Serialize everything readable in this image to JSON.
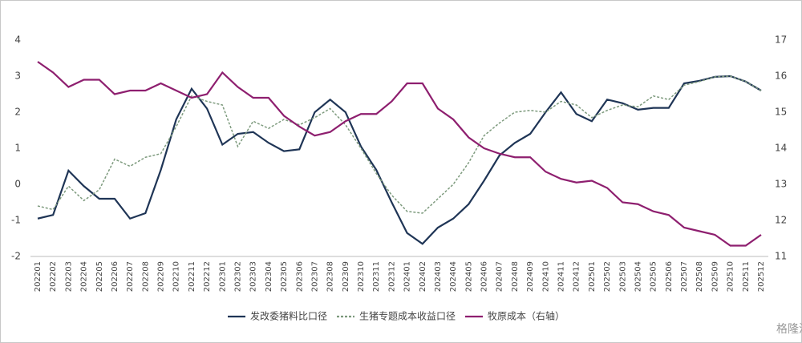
{
  "chart_data": {
    "type": "line",
    "categories": [
      "202201",
      "202202",
      "202203",
      "202204",
      "202205",
      "202206",
      "202207",
      "202208",
      "202209",
      "202210",
      "202211",
      "202212",
      "202301",
      "202302",
      "202303",
      "202304",
      "202305",
      "202306",
      "202307",
      "202308",
      "202309",
      "202310",
      "202311",
      "202312",
      "202401",
      "202402",
      "202403",
      "202404",
      "202405",
      "202406",
      "202407",
      "202408",
      "202409",
      "202410",
      "202411",
      "202412",
      "202501",
      "202502",
      "202503",
      "202504",
      "202505",
      "202506",
      "202507",
      "202508",
      "202509",
      "202510",
      "202511",
      "202512"
    ],
    "series": [
      {
        "name": "发改委猪料比口径",
        "color": "#1f3556",
        "line_style": "solid",
        "values": [
          -0.95,
          -0.85,
          0.38,
          -0.05,
          -0.4,
          -0.4,
          -0.95,
          -0.8,
          0.4,
          1.8,
          2.65,
          2.1,
          1.1,
          1.4,
          1.45,
          1.15,
          0.92,
          0.97,
          2.0,
          2.35,
          2.0,
          1.05,
          0.4,
          -0.5,
          -1.35,
          -1.65,
          -1.2,
          -0.95,
          -0.55,
          0.1,
          0.8,
          1.15,
          1.4,
          2.0,
          2.55,
          1.95,
          1.75,
          2.35,
          2.25,
          2.07,
          2.12,
          2.12,
          2.8,
          2.87,
          2.98,
          3.0,
          2.85,
          2.6
        ]
      },
      {
        "name": "生猪专题成本收益口径",
        "color": "#7d9a7d",
        "line_style": "dotted",
        "values": [
          -0.6,
          -0.7,
          -0.05,
          -0.45,
          -0.15,
          0.7,
          0.5,
          0.75,
          0.85,
          1.6,
          2.45,
          2.3,
          2.2,
          1.05,
          1.75,
          1.55,
          1.8,
          1.65,
          1.85,
          2.1,
          1.65,
          1.0,
          0.3,
          -0.3,
          -0.75,
          -0.8,
          -0.4,
          0.0,
          0.6,
          1.35,
          1.7,
          2.0,
          2.05,
          2.0,
          2.3,
          2.2,
          1.85,
          2.05,
          2.2,
          2.15,
          2.45,
          2.35,
          2.75,
          2.85,
          2.98,
          3.0,
          2.85,
          2.6
        ]
      },
      {
        "name": "牧原成本（右轴）",
        "color": "#8e1f6f",
        "line_style": "solid",
        "axis": "y2",
        "values": [
          16.4,
          16.1,
          15.7,
          15.9,
          15.9,
          15.5,
          15.6,
          15.6,
          15.8,
          15.6,
          15.4,
          15.5,
          16.1,
          15.7,
          15.4,
          15.4,
          14.9,
          14.6,
          14.35,
          14.45,
          14.75,
          14.95,
          14.95,
          15.3,
          15.8,
          15.8,
          15.1,
          14.8,
          14.3,
          14.0,
          13.85,
          13.75,
          13.75,
          13.35,
          13.15,
          13.05,
          13.1,
          12.9,
          12.5,
          12.45,
          12.25,
          12.15,
          11.8,
          11.7,
          11.6,
          11.3,
          11.3,
          11.6
        ]
      }
    ],
    "ylim": [
      -2,
      4
    ],
    "yticks": [
      -2,
      -1,
      0,
      1,
      2,
      3,
      4
    ],
    "y2lim": [
      11,
      17
    ],
    "y2ticks": [
      11,
      12,
      13,
      14,
      15,
      16,
      17
    ],
    "grid": false,
    "legend": "bottom",
    "watermark": "格隆汇"
  }
}
